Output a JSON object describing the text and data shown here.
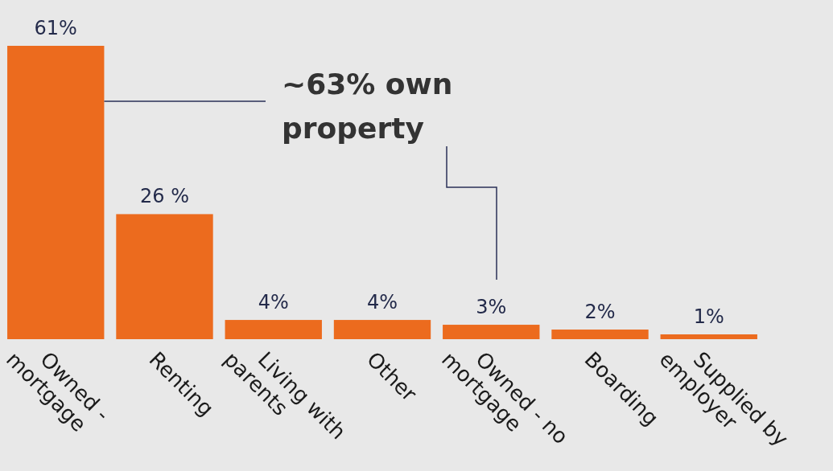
{
  "chart_data": {
    "type": "bar",
    "categories": [
      "Owned - mortgage",
      "Renting",
      "Living with parents",
      "Other",
      "Owned - no mortgage",
      "Boarding",
      "Supplied by employer"
    ],
    "values": [
      61,
      26,
      4,
      4,
      3,
      2,
      1
    ],
    "value_labels": [
      "61%",
      "26 %",
      "4%",
      "4%",
      "3%",
      "2%",
      "1%"
    ],
    "color": "#ec6b1e",
    "annotations": [
      "~63% own property"
    ]
  }
}
